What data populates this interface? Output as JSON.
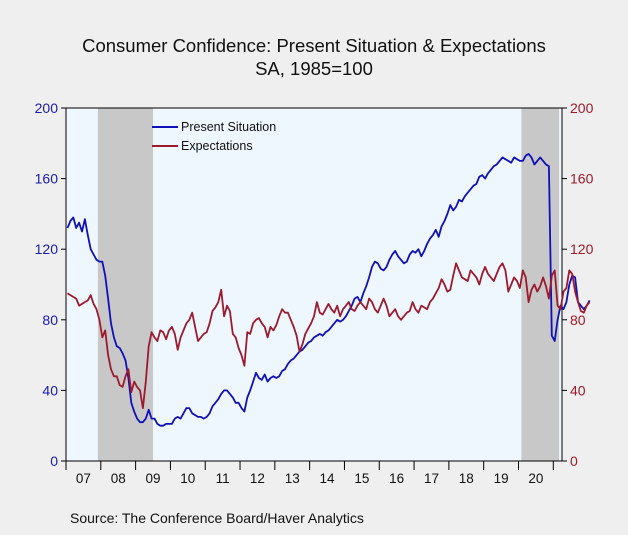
{
  "chart_data": {
    "type": "line",
    "title": "Consumer Confidence: Present Situation & Expectations",
    "subtitle": "SA, 1985=100",
    "source": "Source:  The Conference Board/Haver Analytics",
    "x_start": "2007-01",
    "x_end": "2021-03",
    "x_tick_labels": [
      "07",
      "08",
      "09",
      "10",
      "11",
      "12",
      "13",
      "14",
      "15",
      "16",
      "17",
      "18",
      "19",
      "20"
    ],
    "y_left": {
      "min": 0,
      "max": 200,
      "ticks": [
        0,
        40,
        80,
        120,
        160,
        200
      ]
    },
    "y_right": {
      "min": 0,
      "max": 200,
      "ticks": [
        0,
        40,
        80,
        120,
        160,
        200
      ]
    },
    "recessions": [
      {
        "start": "2007-12",
        "end": "2009-06"
      },
      {
        "start": "2020-02",
        "end": "2021-02"
      }
    ],
    "legend_position": "top-left",
    "colors": {
      "background": "#efefef",
      "plot_background": "#eef6fe",
      "recession_shading": "#c8c8c8",
      "left_axis": "#1a1ab4",
      "right_axis": "#9b1b2b"
    },
    "series": [
      {
        "name": "Present Situation",
        "color": "#1010b8",
        "axis": "left",
        "start": "2007-01",
        "values": [
          132,
          136,
          138,
          132,
          135,
          130,
          137,
          128,
          120,
          117,
          114,
          113,
          113,
          105,
          92,
          78,
          70,
          65,
          64,
          61,
          57,
          47,
          33,
          28,
          24,
          22,
          22,
          24,
          29,
          24,
          24,
          21,
          20,
          20,
          21,
          21,
          21,
          24,
          25,
          24,
          27,
          30,
          30,
          27,
          26,
          25,
          25,
          24,
          25,
          27,
          31,
          33,
          35,
          38,
          40,
          40,
          38,
          36,
          33,
          33,
          30,
          28,
          36,
          40,
          45,
          50,
          47,
          46,
          49,
          45,
          47,
          48,
          47,
          48,
          51,
          52,
          55,
          57,
          58,
          60,
          62,
          63,
          65,
          67,
          68,
          70,
          71,
          72,
          71,
          73,
          74,
          76,
          78,
          80,
          79,
          80,
          82,
          85,
          88,
          92,
          93,
          90,
          95,
          99,
          104,
          110,
          113,
          112,
          109,
          108,
          110,
          114,
          117,
          119,
          116,
          114,
          112,
          113,
          117,
          119,
          118,
          120,
          116,
          119,
          123,
          126,
          128,
          131,
          127,
          133,
          136,
          140,
          145,
          142,
          144,
          148,
          147,
          150,
          152,
          154,
          156,
          157,
          161,
          162,
          160,
          163,
          165,
          167,
          168,
          170,
          172,
          171,
          170,
          169,
          172,
          171,
          170,
          170,
          173,
          174,
          172,
          168,
          170,
          172,
          170,
          168,
          167,
          71,
          68,
          80,
          88,
          86,
          90,
          100,
          105,
          104,
          90,
          88,
          86,
          88,
          91
        ]
      },
      {
        "name": "Expectations",
        "color": "#9c1a2e",
        "axis": "right",
        "start": "2007-01",
        "values": [
          95,
          94,
          93,
          92,
          88,
          89,
          90,
          91,
          94,
          89,
          86,
          80,
          70,
          74,
          60,
          52,
          48,
          48,
          43,
          42,
          48,
          52,
          39,
          45,
          42,
          40,
          30,
          45,
          65,
          73,
          70,
          68,
          74,
          73,
          69,
          74,
          76,
          72,
          63,
          70,
          74,
          78,
          80,
          84,
          76,
          68,
          70,
          72,
          73,
          78,
          85,
          87,
          90,
          97,
          82,
          88,
          85,
          72,
          70,
          64,
          60,
          54,
          73,
          72,
          78,
          80,
          81,
          78,
          76,
          70,
          76,
          74,
          77,
          82,
          86,
          84,
          84,
          80,
          76,
          71,
          62,
          66,
          72,
          75,
          78,
          82,
          90,
          84,
          83,
          86,
          89,
          86,
          84,
          88,
          82,
          86,
          88,
          90,
          86,
          85,
          88,
          90,
          88,
          86,
          92,
          90,
          86,
          84,
          88,
          92,
          88,
          82,
          84,
          86,
          82,
          80,
          82,
          84,
          85,
          90,
          86,
          84,
          88,
          87,
          86,
          90,
          92,
          95,
          98,
          103,
          100,
          96,
          97,
          105,
          112,
          108,
          104,
          103,
          102,
          108,
          106,
          104,
          100,
          106,
          110,
          106,
          104,
          102,
          106,
          110,
          112,
          108,
          96,
          100,
          104,
          102,
          98,
          108,
          104,
          90,
          97,
          100,
          96,
          99,
          104,
          99,
          92,
          105,
          108,
          88,
          86,
          96,
          98,
          108,
          106,
          96,
          90,
          85,
          84,
          88,
          90
        ]
      }
    ]
  }
}
